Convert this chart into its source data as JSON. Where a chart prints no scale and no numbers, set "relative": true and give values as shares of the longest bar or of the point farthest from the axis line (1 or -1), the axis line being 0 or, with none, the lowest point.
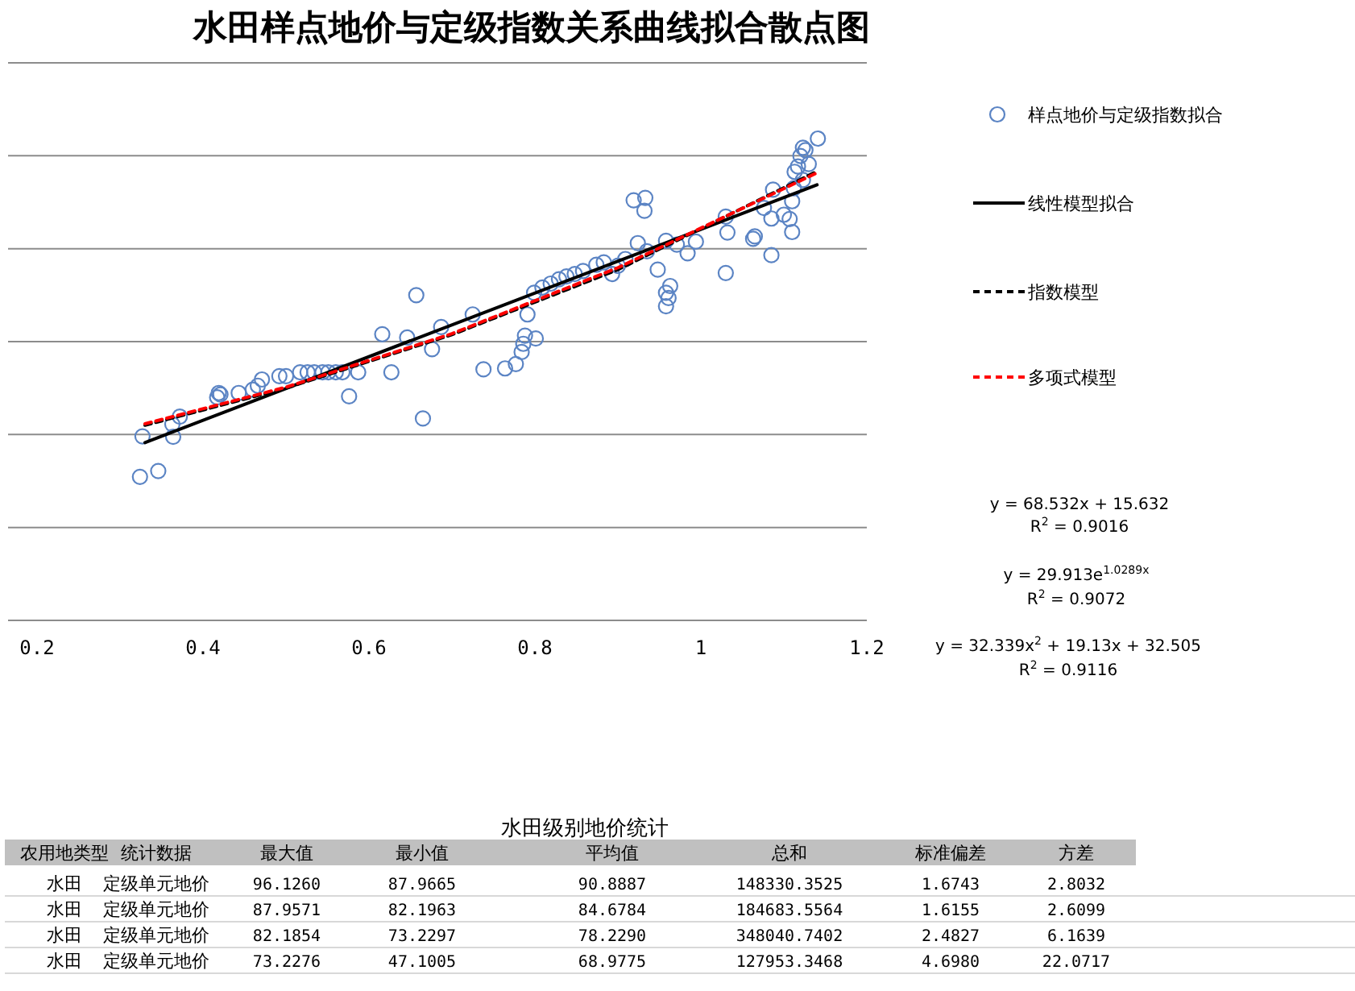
{
  "chart_data": [
    {
      "type": "scatter",
      "title": "水田样点地价与定级指数关系曲线拟合散点图",
      "xlim": [
        0.165,
        1.2
      ],
      "xticks": [
        0.2,
        0.4,
        0.6,
        0.8,
        1,
        1.2
      ],
      "relative": true,
      "tick_labels": "x",
      "grid": "y",
      "legend": "right",
      "series": [
        {
          "name": "样点地价与定级指数拟合",
          "color": "#5b84c4",
          "type": "scatter",
          "marker": "circle",
          "x": [
            0.324,
            0.346,
            0.327,
            0.364,
            0.363,
            0.372,
            0.417,
            0.421,
            0.419,
            0.443,
            0.46,
            0.466,
            0.471,
            0.492,
            0.5,
            0.517,
            0.526,
            0.534,
            0.544,
            0.551,
            0.56,
            0.568,
            0.576,
            0.587,
            0.616,
            0.627,
            0.646,
            0.657,
            0.665,
            0.676,
            0.687,
            0.725,
            0.738,
            0.764,
            0.777,
            0.784,
            0.786,
            0.788,
            0.801,
            0.791,
            0.799,
            0.809,
            0.819,
            0.829,
            0.838,
            0.848,
            0.858,
            0.874,
            0.883,
            0.893,
            0.9,
            0.909,
            0.919,
            0.933,
            0.932,
            0.924,
            0.935,
            0.948,
            0.958,
            0.961,
            0.963,
            0.958,
            0.958,
            0.971,
            0.984,
            0.994,
            1.03,
            1.032,
            1.03,
            1.063,
            1.065,
            1.085,
            1.087,
            1.076,
            1.085,
            1.1,
            1.107,
            1.11,
            1.11,
            1.112,
            1.113,
            1.117,
            1.12,
            1.123,
            1.126,
            1.13,
            1.123,
            1.141
          ],
          "values": [
            0.298,
            0.31,
            0.382,
            0.381,
            0.407,
            0.423,
            0.463,
            0.469,
            0.472,
            0.472,
            0.479,
            0.487,
            0.5,
            0.507,
            0.507,
            0.515,
            0.515,
            0.515,
            0.515,
            0.515,
            0.515,
            0.515,
            0.465,
            0.515,
            0.594,
            0.515,
            0.587,
            0.675,
            0.419,
            0.563,
            0.609,
            0.635,
            0.521,
            0.523,
            0.532,
            0.557,
            0.574,
            0.591,
            0.585,
            0.635,
            0.68,
            0.691,
            0.699,
            0.708,
            0.714,
            0.719,
            0.725,
            0.738,
            0.743,
            0.719,
            0.736,
            0.75,
            0.872,
            0.877,
            0.85,
            0.783,
            0.766,
            0.728,
            0.652,
            0.669,
            0.694,
            0.68,
            0.788,
            0.78,
            0.762,
            0.786,
            0.838,
            0.805,
            0.721,
            0.792,
            0.797,
            0.758,
            0.894,
            0.856,
            0.834,
            0.842,
            0.833,
            0.806,
            0.87,
            0.897,
            0.931,
            0.942,
            0.964,
            0.981,
            0.976,
            0.947,
            0.914,
            1
          ]
        },
        {
          "name": "线性模型拟合",
          "color": "#000000",
          "type": "line",
          "line_style": "solid",
          "x": [
            0.33,
            1.14
          ],
          "values": [
            0.369,
            0.904
          ]
        },
        {
          "name": "指数模型",
          "color": "#000000",
          "type": "line",
          "line_style": "dashed",
          "x": [
            0.33,
            0.5,
            0.7,
            0.9,
            1.14
          ],
          "values": [
            0.405,
            0.482,
            0.593,
            0.728,
            0.932
          ]
        },
        {
          "name": "多项式模型",
          "color": "#ff0000",
          "type": "line",
          "line_style": "dashed",
          "x": [
            0.33,
            0.5,
            0.7,
            0.9,
            1.14
          ],
          "values": [
            0.408,
            0.484,
            0.595,
            0.732,
            0.929
          ]
        }
      ],
      "annotations": [
        "y = 68.532x + 15.632",
        "R$^{2}$ = 0.9016",
        "y = 29.913e$^{1.0289x}$",
        "R$^{2}$ = 0.9072",
        "y = 32.339x$^{2}$ + 19.13x + 32.505",
        "R$^{2}$ = 0.9116"
      ]
    },
    {
      "type": "other",
      "title": "水田级别地价统计",
      "annotations": [
        "农用地类型",
        "统计数据",
        "最大值",
        "最小值",
        "平均值",
        "总和",
        "标准偏差",
        "方差",
        "水田",
        "定级单元地价",
        "96.1260",
        "87.9665",
        "90.8887",
        "148330.3525",
        "1.6743",
        "2.8032",
        "水田",
        "定级单元地价",
        "87.9571",
        "82.1963",
        "84.6784",
        "184683.5564",
        "1.6155",
        "2.6099",
        "水田",
        "定级单元地价",
        "82.1854",
        "73.2297",
        "78.2290",
        "348040.7402",
        "2.4827",
        "6.1639",
        "水田",
        "定级单元地价",
        "73.2276",
        "47.1005",
        "68.9775",
        "127953.3468",
        "4.6980",
        "22.0717"
      ]
    }
  ]
}
